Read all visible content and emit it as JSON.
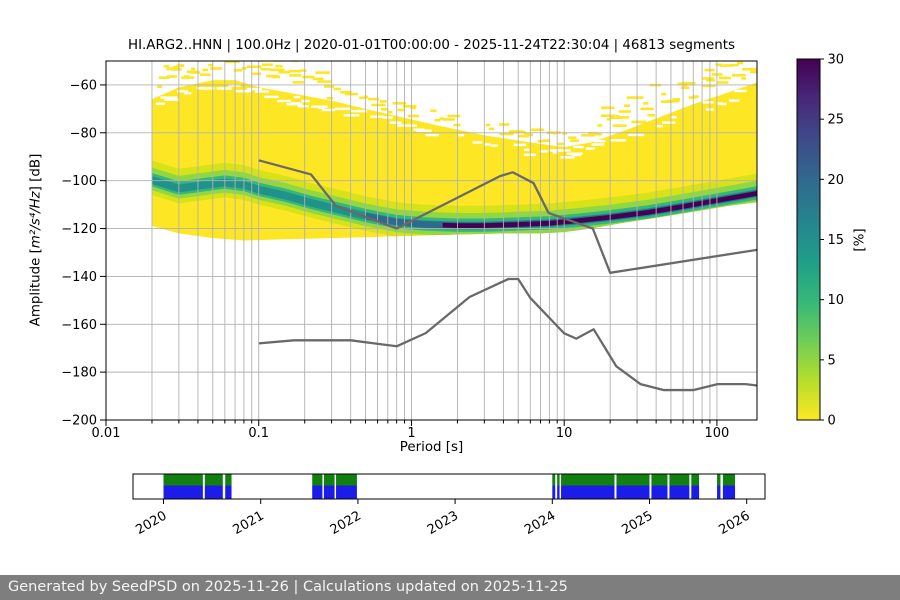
{
  "title": "HI.ARG2..HNN | 100.0Hz | 2020-01-01T00:00:00 - 2025-11-24T22:30:04 | 46813 segments",
  "plot": {
    "xlabel": "Period [s]",
    "ylabel_prefix": "Amplitude [",
    "ylabel_math": "m²/s⁴/Hz",
    "ylabel_suffix": "] [dB]",
    "x_tick_labels": [
      "0.01",
      "0.1",
      "1",
      "10",
      "100"
    ],
    "x_tick_values": [
      0.01,
      0.1,
      1,
      10,
      100
    ],
    "y_tick_labels": [
      "−60",
      "−80",
      "−100",
      "−120",
      "−140",
      "−160",
      "−180",
      "−200"
    ],
    "y_tick_values": [
      -60,
      -80,
      -100,
      -120,
      -140,
      -160,
      -180,
      -200
    ]
  },
  "colorbar": {
    "label": "[%]",
    "tick_labels": [
      "0",
      "5",
      "10",
      "15",
      "20",
      "25",
      "30"
    ],
    "tick_values": [
      0,
      5,
      10,
      15,
      20,
      25,
      30
    ],
    "stops": [
      {
        "o": 0.0,
        "c": "#fde725"
      },
      {
        "o": 0.11,
        "c": "#b5de2b"
      },
      {
        "o": 0.22,
        "c": "#6ece58"
      },
      {
        "o": 0.33,
        "c": "#35b779"
      },
      {
        "o": 0.44,
        "c": "#1f9e89"
      },
      {
        "o": 0.56,
        "c": "#26828e"
      },
      {
        "o": 0.67,
        "c": "#31688e"
      },
      {
        "o": 0.78,
        "c": "#3e4a89"
      },
      {
        "o": 0.89,
        "c": "#482878"
      },
      {
        "o": 1.0,
        "c": "#440154"
      }
    ]
  },
  "chart_data": {
    "type": "heatmap",
    "xscale": "log",
    "xlim": [
      0.01,
      183
    ],
    "ylim": [
      -200,
      -50
    ],
    "colorbar_range": [
      0,
      30
    ],
    "colormap": "viridis_r",
    "mode_curve": {
      "period": [
        0.02,
        0.03,
        0.045,
        0.06,
        0.08,
        0.1,
        0.15,
        0.22,
        0.32,
        0.5,
        0.8,
        1.2,
        2,
        3,
        5,
        8,
        12,
        20,
        35,
        60,
        100,
        150,
        183
      ],
      "db": [
        -100,
        -103.5,
        -102,
        -101,
        -102,
        -104,
        -106.5,
        -109.5,
        -112,
        -115,
        -117.5,
        -118.5,
        -119,
        -119,
        -118.5,
        -118,
        -117,
        -115.5,
        -113.5,
        -111,
        -108.5,
        -106.5,
        -105.5
      ]
    },
    "upper_envelope": {
      "period": [
        0.02,
        0.03,
        0.05,
        0.07,
        0.1,
        0.15,
        0.22,
        0.32,
        0.5,
        0.8,
        1.5,
        3,
        6,
        10,
        15,
        25,
        40,
        70,
        120,
        183
      ],
      "db": [
        -66,
        -61,
        -58,
        -58,
        -61,
        -63,
        -65,
        -67,
        -70,
        -73,
        -77,
        -81,
        -84,
        -86,
        -84,
        -79,
        -74,
        -68,
        -63,
        -59
      ]
    },
    "lower_envelope": {
      "period": [
        0.02,
        0.03,
        0.05,
        0.08,
        0.15,
        0.3,
        0.6,
        1,
        2,
        4,
        7,
        10,
        15,
        25,
        40,
        70,
        120,
        183
      ],
      "db": [
        -119,
        -122,
        -124,
        -125,
        -124.5,
        -124,
        -123.5,
        -123,
        -122.5,
        -122,
        -122,
        -121.5,
        -120,
        -117.5,
        -115.5,
        -113,
        -110.5,
        -109
      ]
    },
    "noise_models": {
      "nhnm": {
        "period": [
          0.1,
          0.22,
          0.32,
          0.8,
          3.8,
          4.6,
          6.3,
          7.9,
          15.4,
          20.0,
          183
        ],
        "db": [
          -91.5,
          -97.4,
          -110.5,
          -120.0,
          -98.1,
          -96.5,
          -101.0,
          -113.5,
          -120.0,
          -138.5,
          -128.9
        ]
      },
      "nlnm": {
        "period": [
          0.1,
          0.17,
          0.4,
          0.8,
          1.24,
          2.4,
          4.3,
          5.0,
          6.0,
          10.0,
          12.0,
          15.6,
          21.9,
          31.6,
          45.0,
          70.0,
          101.0,
          154.0,
          183
        ],
        "db": [
          -168.0,
          -166.7,
          -166.7,
          -169.2,
          -163.7,
          -148.6,
          -141.1,
          -141.1,
          -149.0,
          -163.8,
          -166.0,
          -162.1,
          -177.5,
          -185.0,
          -187.5,
          -187.5,
          -185.0,
          -185.0,
          -185.6
        ]
      }
    }
  },
  "timeline": {
    "year_labels": [
      "2020",
      "2021",
      "2022",
      "2023",
      "2024",
      "2025",
      "2026"
    ],
    "segments_years": [
      [
        2020.0,
        2020.405
      ],
      [
        2020.425,
        2020.61
      ],
      [
        2020.635,
        2020.7
      ],
      [
        2021.53,
        2021.635
      ],
      [
        2021.65,
        2021.76
      ],
      [
        2021.775,
        2021.99
      ],
      [
        2024.0,
        2024.03
      ],
      [
        2024.05,
        2024.075
      ],
      [
        2024.09,
        2024.64
      ],
      [
        2024.66,
        2025.0
      ],
      [
        2025.02,
        2025.185
      ],
      [
        2025.205,
        2025.41
      ],
      [
        2025.43,
        2025.51
      ],
      [
        2025.695,
        2025.73
      ],
      [
        2025.755,
        2025.88
      ]
    ]
  },
  "footer": {
    "text": "Generated by SeedPSD on 2025-11-26 | Calculations updated on 2025-11-25"
  },
  "colors": {
    "histogram_low": "#fde725",
    "noise_model_line": "#696969",
    "grid": "#b1b1b1",
    "timeline_green": "#118011",
    "timeline_blue": "#1c1ce8",
    "footer_bg": "#7e7e7e"
  }
}
